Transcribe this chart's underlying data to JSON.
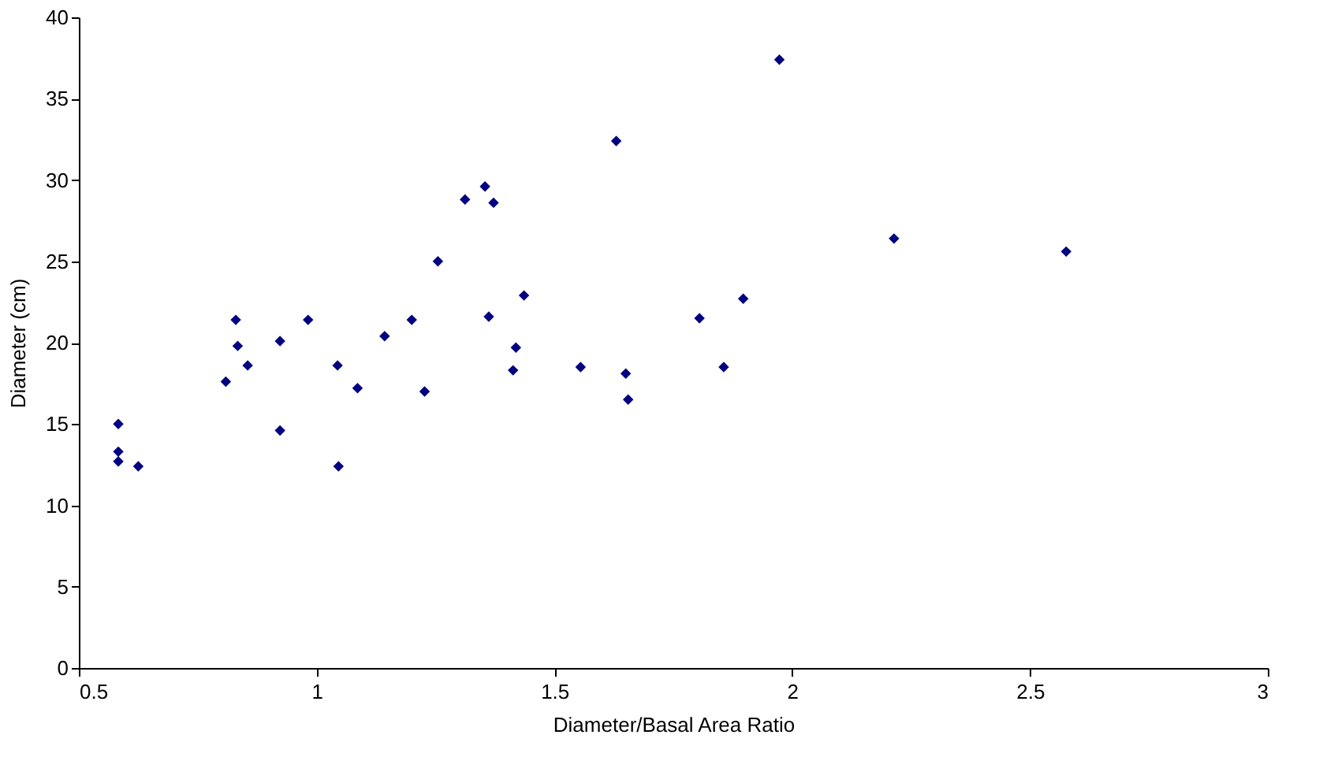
{
  "chart_data": {
    "type": "scatter",
    "xlabel": "Diameter/Basal Area Ratio",
    "ylabel": "Diameter (cm)",
    "x": [
      0.583,
      0.583,
      0.583,
      0.625,
      0.809,
      0.83,
      0.834,
      0.855,
      0.923,
      0.923,
      0.982,
      1.044,
      1.046,
      1.086,
      1.143,
      1.2,
      1.227,
      1.255,
      1.312,
      1.354,
      1.372,
      1.436,
      1.362,
      1.419,
      1.413,
      1.555,
      1.63,
      1.65,
      1.655,
      1.805,
      1.856,
      1.897,
      1.973,
      2.214,
      2.576
    ],
    "series": [
      {
        "color": "#000080",
        "values": [
          15.0,
          13.3,
          12.7,
          12.4,
          17.6,
          21.4,
          19.8,
          18.6,
          20.1,
          14.6,
          21.4,
          18.6,
          12.4,
          17.2,
          20.4,
          21.4,
          17.0,
          25.0,
          28.8,
          29.6,
          28.6,
          22.9,
          21.6,
          19.7,
          18.3,
          18.5,
          32.4,
          18.1,
          16.5,
          21.5,
          18.5,
          22.7,
          37.4,
          26.4,
          25.6
        ]
      }
    ],
    "xlim": [
      0.5,
      3
    ],
    "xticks": [
      0.5,
      1,
      1.5,
      2,
      2.5,
      3
    ],
    "ylim": [
      0,
      40
    ],
    "yticks": [
      0,
      5,
      10,
      15,
      20,
      25,
      30,
      35,
      40
    ],
    "grid": false,
    "legend": false,
    "marker": "diamond"
  }
}
